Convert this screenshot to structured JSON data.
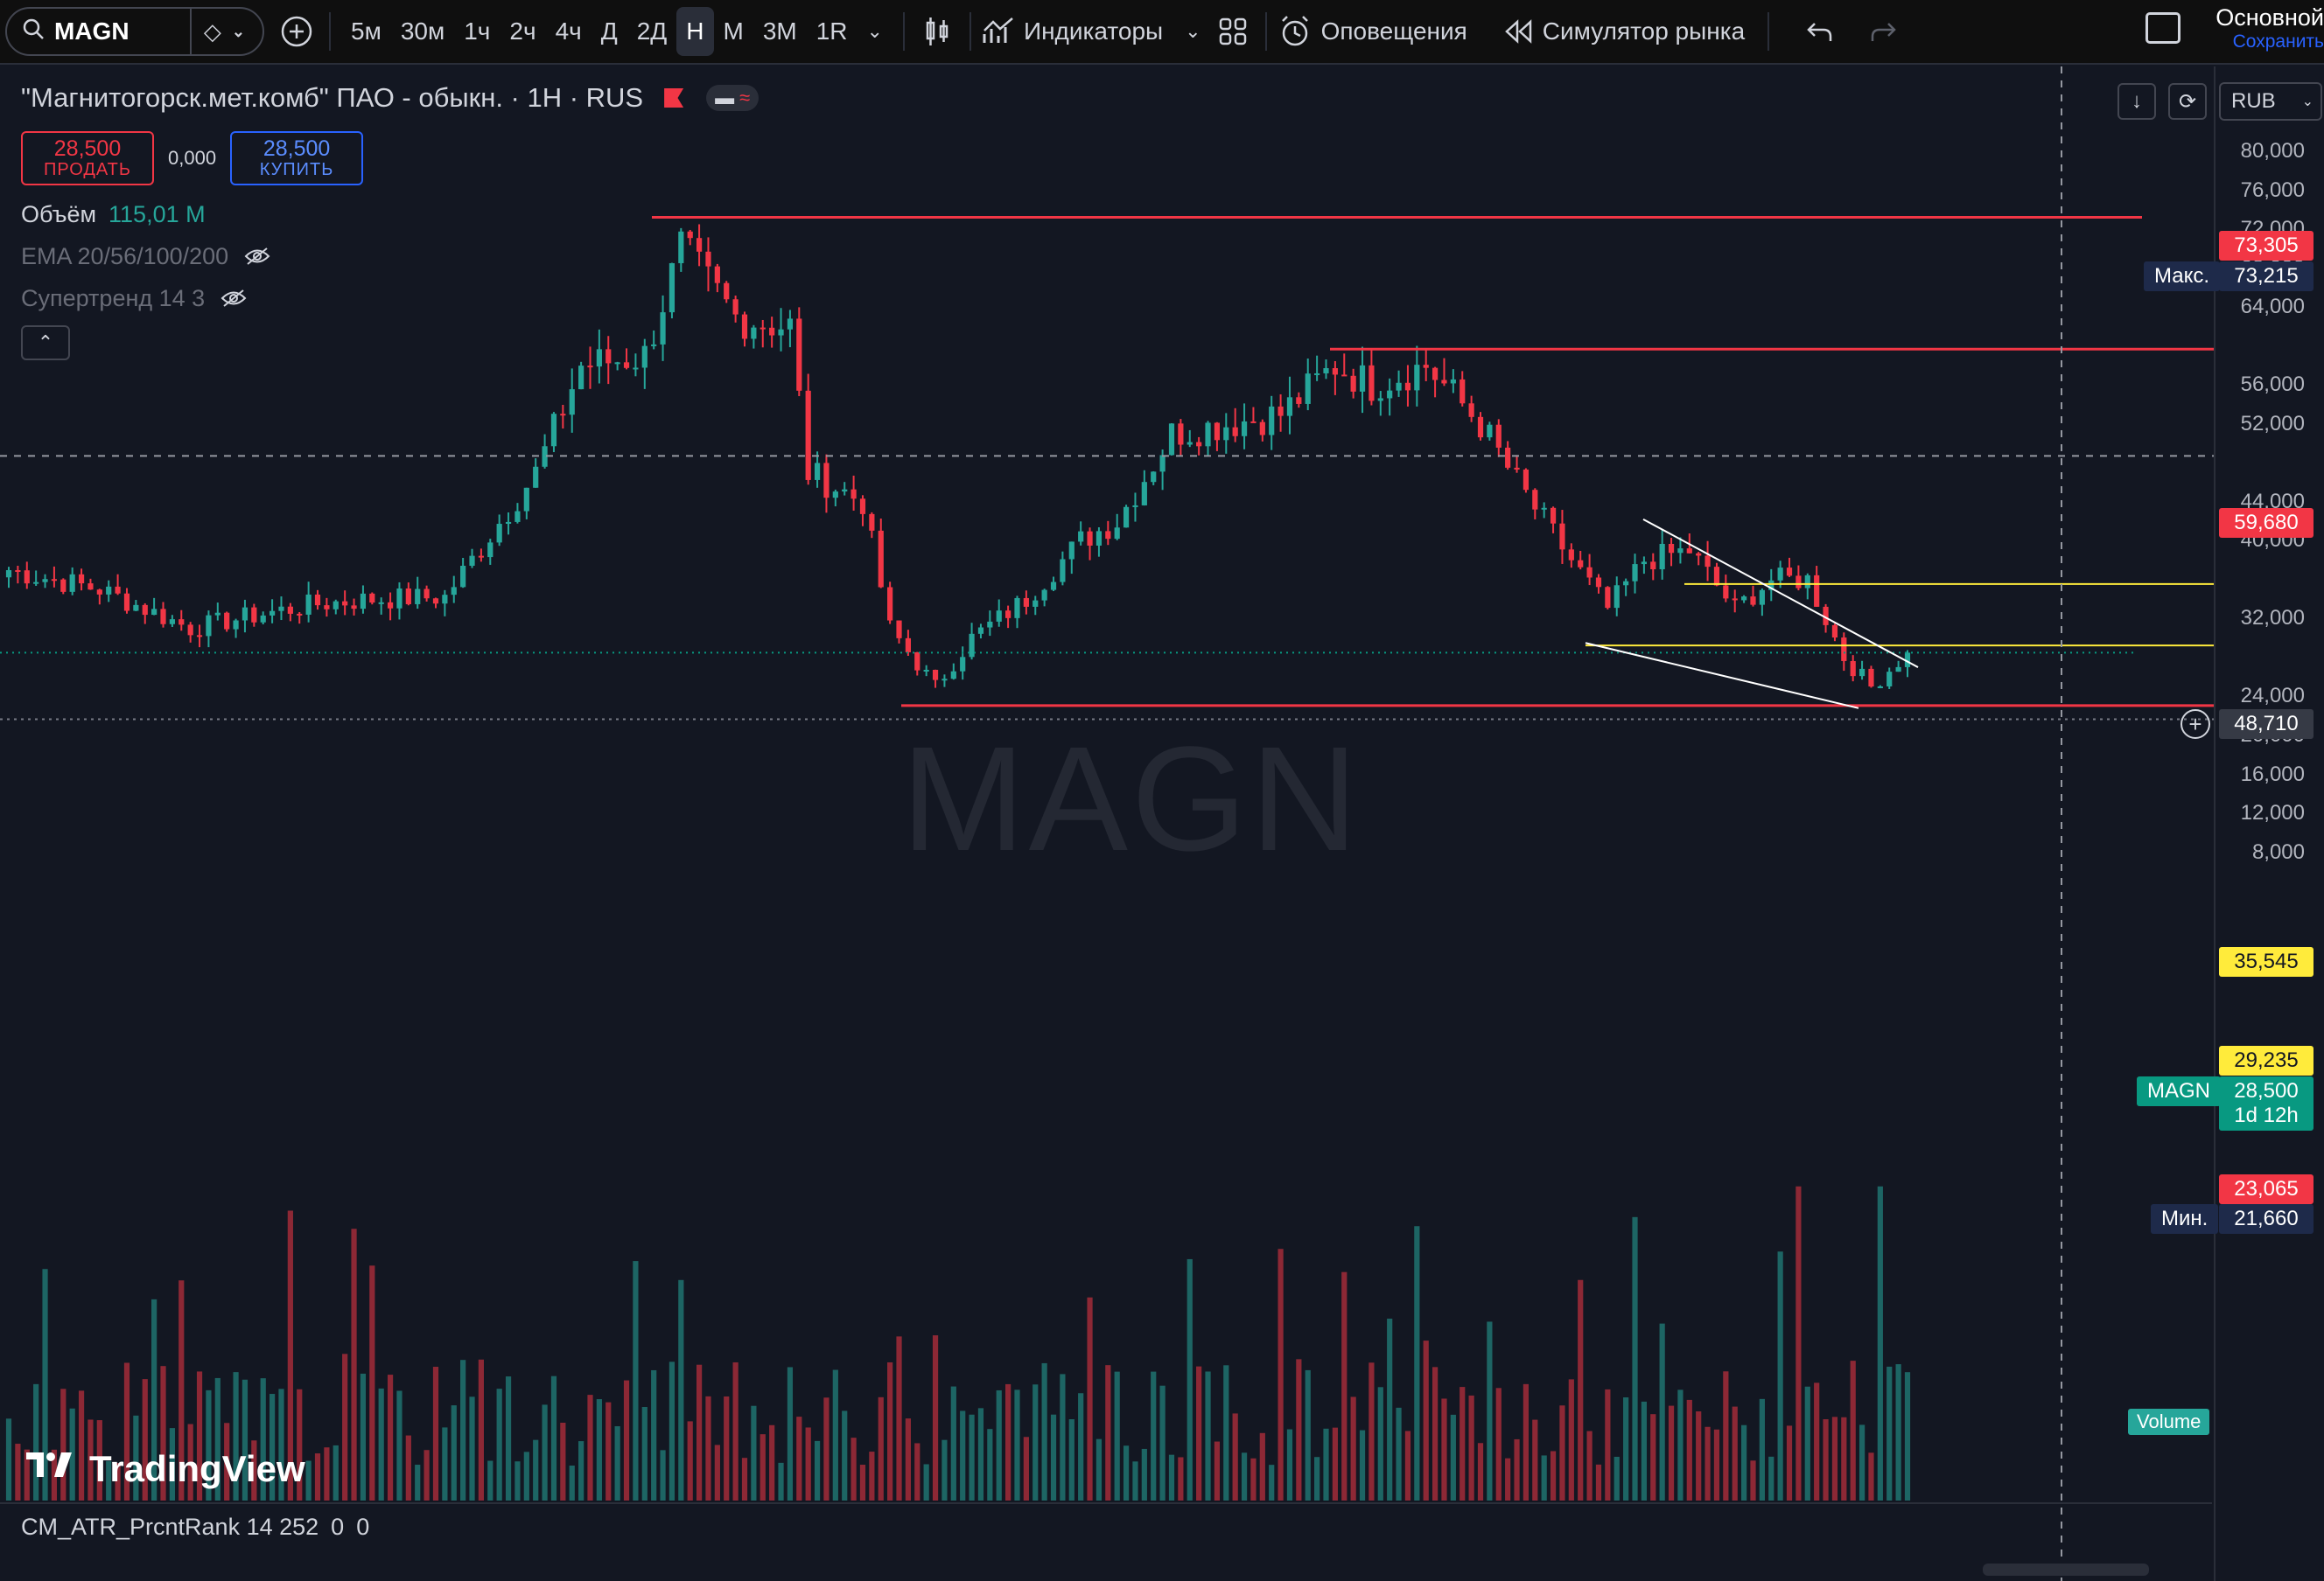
{
  "toolbar": {
    "symbol": "MAGN",
    "timeframes": [
      "5м",
      "30м",
      "1ч",
      "2ч",
      "4ч",
      "Д",
      "2Д",
      "Н",
      "М",
      "3М",
      "1R"
    ],
    "active_timeframe": "Н",
    "indicators_label": "Индикаторы",
    "alerts_label": "Оповещения",
    "replay_label": "Симулятор рынка",
    "layout_name": "Основной",
    "save_label": "Сохранить"
  },
  "legend": {
    "title": "\"Магнитогорск.мет.комб\" ПАО - обыкн. · 1Н · RUS",
    "sell_price": "28,500",
    "sell_label": "ПРОДАТЬ",
    "spread": "0,000",
    "buy_price": "28,500",
    "buy_label": "КУПИТЬ",
    "volume_name": "Объём",
    "volume_value": "115,01 M",
    "ema_name": "EMA 20/56/100/200",
    "supertrend_name": "Супертренд 14 3"
  },
  "watermark": "MAGN",
  "logo_text": "TradingView",
  "atr": {
    "name": "CM_ATR_PrcntRank 14 252",
    "v1": "0",
    "v2": "0"
  },
  "currency": "RUB",
  "price_scale": [
    "80,000",
    "76,000",
    "72,000",
    "68,000",
    "64,000",
    "56,000",
    "52,000",
    "44,000",
    "40,000",
    "32,000",
    "24,000",
    "20,000",
    "16,000",
    "12,000",
    "8,000"
  ],
  "labels": {
    "high_max": "73,305",
    "max_text": "Макс.",
    "max_value": "73,215",
    "level_59": "59,680",
    "crosshair": "48,710",
    "level_35": "35,545",
    "level_29": "29,235",
    "symbol_tag": "MAGN",
    "last_price": "28,500",
    "countdown": "1d 12h",
    "level_23": "23,065",
    "min_text": "Мин.",
    "min_value": "21,660",
    "volume_tag": "Volume"
  },
  "chart_data": {
    "type": "candlestick",
    "symbol": "MAGN",
    "interval": "1W",
    "currency": "RUB",
    "ylim": [
      5000,
      82000
    ],
    "x_count": 210,
    "anchors": [
      [
        0,
        37000
      ],
      [
        10,
        35000
      ],
      [
        20,
        31000
      ],
      [
        28,
        32500
      ],
      [
        34,
        33500
      ],
      [
        40,
        34000
      ],
      [
        48,
        34200
      ],
      [
        58,
        47000
      ],
      [
        63,
        58000
      ],
      [
        70,
        59000
      ],
      [
        74,
        70000
      ],
      [
        80,
        63000
      ],
      [
        86,
        62000
      ],
      [
        88,
        47000
      ],
      [
        94,
        44000
      ],
      [
        97,
        31000
      ],
      [
        102,
        25000
      ],
      [
        106,
        30000
      ],
      [
        112,
        34000
      ],
      [
        118,
        40000
      ],
      [
        122,
        42000
      ],
      [
        128,
        51000
      ],
      [
        134,
        52000
      ],
      [
        140,
        53000
      ],
      [
        146,
        58000
      ],
      [
        150,
        56000
      ],
      [
        156,
        58000
      ],
      [
        162,
        52000
      ],
      [
        166,
        46000
      ],
      [
        172,
        38000
      ],
      [
        176,
        33000
      ],
      [
        180,
        38000
      ],
      [
        185,
        39000
      ],
      [
        190,
        33000
      ],
      [
        194,
        36000
      ],
      [
        198,
        36000
      ],
      [
        202,
        28000
      ],
      [
        205,
        25000
      ],
      [
        209,
        28500
      ]
    ],
    "volume_range": [
      1,
      56
    ],
    "horizontal_levels": [
      73215,
      59680,
      35545,
      29235,
      23065
    ],
    "last_price": 28500,
    "high": 73305,
    "low": 21660,
    "crosshair_price": 48710
  }
}
